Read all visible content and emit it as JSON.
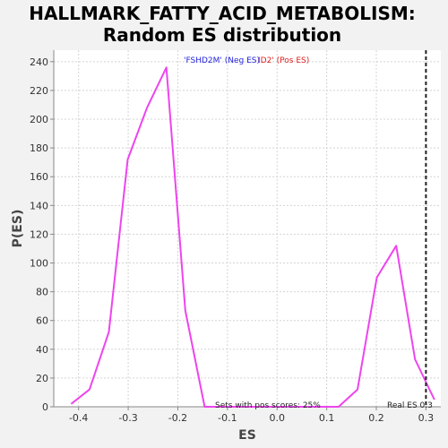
{
  "chart_data": {
    "type": "line",
    "title_lines": [
      "HALLMARK_FATTY_ACID_METABOLISM:",
      "Random ES distribution"
    ],
    "xlabel": "ES",
    "ylabel": "P(ES)",
    "xlim": [
      -0.45,
      0.33
    ],
    "ylim": [
      0,
      248
    ],
    "xticks": [
      -0.4,
      -0.3,
      -0.2,
      -0.1,
      0.0,
      0.1,
      0.2,
      0.3
    ],
    "xtick_labels": [
      "-0.4",
      "-0.3",
      "-0.2",
      "-0.1",
      "0.0",
      "0.1",
      "0.2",
      "0.3"
    ],
    "yticks": [
      0,
      20,
      40,
      60,
      80,
      100,
      120,
      140,
      160,
      180,
      200,
      220,
      240
    ],
    "ytick_labels": [
      "0",
      "20",
      "40",
      "60",
      "80",
      "100",
      "120",
      "140",
      "160",
      "180",
      "200",
      "220",
      "240"
    ],
    "grid": true,
    "series": [
      {
        "color": "#ee44ee",
        "x": [
          -0.415,
          -0.378,
          -0.339,
          -0.301,
          -0.262,
          -0.223,
          -0.185,
          -0.146,
          -0.108,
          -0.069,
          -0.031,
          0.008,
          0.047,
          0.085,
          0.124,
          0.162,
          0.201,
          0.24,
          0.278,
          0.317
        ],
        "y": [
          2,
          12,
          52,
          172,
          208,
          236,
          67,
          0,
          0,
          0,
          0,
          0,
          0,
          0,
          0,
          12,
          90,
          112,
          33,
          5
        ]
      }
    ],
    "real_es": 0.3,
    "real_es_label": "Real ES 0.3",
    "legend": [
      {
        "text": "'FSHD2M' (Neg ES)",
        "color": "#2222dd"
      },
      {
        "text": "ID2' (Pos ES)",
        "color": "#dd2222"
      }
    ],
    "annotation": "Sets with pos scores: 25%"
  }
}
